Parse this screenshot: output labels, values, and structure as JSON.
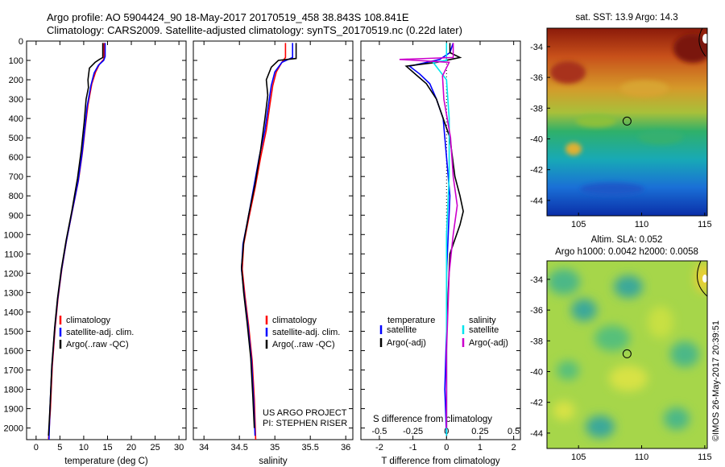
{
  "header": {
    "line1": "Argo profile: AO 5904424_90 18-May-2017 20170519_458 38.843S 108.841E",
    "line2": "Climatology: CARS2009. Satellite-adjusted climatology: synTS_20170519.nc (0.22d later)"
  },
  "depth_axis": {
    "ticks": [
      0,
      100,
      200,
      300,
      400,
      500,
      600,
      700,
      800,
      900,
      1000,
      1100,
      1200,
      1300,
      1400,
      1500,
      1600,
      1700,
      1800,
      1900,
      2000
    ],
    "ylim": [
      0,
      2060
    ],
    "inverted": true
  },
  "colors": {
    "climatology": "#ff0000",
    "satellite": "#0000ff",
    "argo": "#000000",
    "sal_satellite": "#00e5ee",
    "sal_argo": "#cc00cc"
  },
  "chart_data": [
    {
      "type": "line",
      "xlabel": "temperature (deg C)",
      "xlim": [
        -2,
        31.5
      ],
      "xticks": [
        0,
        5,
        10,
        15,
        20,
        25,
        30
      ],
      "legend": [
        "climatology",
        "satellite-adj. clim.",
        "Argo(..raw -QC)"
      ],
      "legend_position": "lower-center",
      "series": [
        {
          "name": "climatology",
          "color": "#ff0000",
          "points": [
            [
              14.3,
              10
            ],
            [
              14.3,
              80
            ],
            [
              14.2,
              95
            ],
            [
              13.3,
              120
            ],
            [
              12.5,
              160
            ],
            [
              11.7,
              220
            ],
            [
              10.9,
              330
            ],
            [
              10.3,
              450
            ],
            [
              9.7,
              580
            ],
            [
              8.9,
              720
            ],
            [
              7.6,
              880
            ],
            [
              6.4,
              1030
            ],
            [
              5.4,
              1180
            ],
            [
              4.6,
              1330
            ],
            [
              4.0,
              1480
            ],
            [
              3.4,
              1680
            ],
            [
              3.0,
              1900
            ],
            [
              2.6,
              2060
            ]
          ]
        },
        {
          "name": "satellite-adj. clim.",
          "color": "#0000ff",
          "points": [
            [
              14.5,
              10
            ],
            [
              14.5,
              80
            ],
            [
              14.2,
              100
            ],
            [
              13.1,
              125
            ],
            [
              12.2,
              165
            ],
            [
              11.5,
              230
            ],
            [
              10.7,
              340
            ],
            [
              10.2,
              460
            ],
            [
              9.6,
              590
            ],
            [
              8.8,
              730
            ],
            [
              7.5,
              890
            ],
            [
              6.3,
              1040
            ],
            [
              5.3,
              1190
            ],
            [
              4.5,
              1340
            ],
            [
              3.9,
              1490
            ],
            [
              3.3,
              1690
            ],
            [
              2.9,
              1900
            ],
            [
              2.7,
              2060
            ]
          ]
        },
        {
          "name": "Argo(..raw -QC)",
          "color": "#000000",
          "points": [
            [
              14.0,
              10
            ],
            [
              14.0,
              85
            ],
            [
              13.3,
              95
            ],
            [
              12.4,
              110
            ],
            [
              11.2,
              140
            ],
            [
              10.9,
              200
            ],
            [
              11.0,
              240
            ],
            [
              10.5,
              300
            ],
            [
              10.1,
              420
            ],
            [
              9.5,
              560
            ],
            [
              8.7,
              710
            ],
            [
              7.5,
              880
            ],
            [
              6.3,
              1030
            ],
            [
              5.3,
              1180
            ],
            [
              4.5,
              1330
            ],
            [
              3.9,
              1480
            ],
            [
              3.3,
              1680
            ],
            [
              2.9,
              1900
            ],
            [
              2.6,
              2040
            ]
          ]
        }
      ]
    },
    {
      "type": "line",
      "xlabel": "salinity",
      "xlim": [
        33.85,
        36.1
      ],
      "xticks": [
        34,
        34.5,
        35,
        35.5,
        36
      ],
      "legend": [
        "climatology",
        "satellite-adj. clim.",
        "Argo(..raw -QC)"
      ],
      "annotation": [
        "US ARGO PROJECT",
        "PI: STEPHEN RISER"
      ],
      "series": [
        {
          "name": "climatology",
          "color": "#ff0000",
          "points": [
            [
              35.15,
              10
            ],
            [
              35.15,
              85
            ],
            [
              35.1,
              110
            ],
            [
              35.02,
              160
            ],
            [
              34.97,
              230
            ],
            [
              34.93,
              330
            ],
            [
              34.88,
              460
            ],
            [
              34.8,
              600
            ],
            [
              34.72,
              760
            ],
            [
              34.63,
              920
            ],
            [
              34.56,
              1050
            ],
            [
              34.54,
              1180
            ],
            [
              34.58,
              1320
            ],
            [
              34.63,
              1470
            ],
            [
              34.68,
              1650
            ],
            [
              34.71,
              1850
            ],
            [
              34.73,
              2060
            ]
          ]
        },
        {
          "name": "satellite-adj. clim.",
          "color": "#0000ff",
          "points": [
            [
              35.25,
              10
            ],
            [
              35.25,
              85
            ],
            [
              35.1,
              110
            ],
            [
              35.0,
              160
            ],
            [
              34.95,
              230
            ],
            [
              34.91,
              330
            ],
            [
              34.86,
              460
            ],
            [
              34.78,
              600
            ],
            [
              34.7,
              760
            ],
            [
              34.62,
              920
            ],
            [
              34.55,
              1050
            ],
            [
              34.53,
              1180
            ],
            [
              34.57,
              1320
            ],
            [
              34.62,
              1470
            ],
            [
              34.67,
              1650
            ],
            [
              34.7,
              1850
            ],
            [
              34.72,
              2040
            ]
          ]
        },
        {
          "name": "Argo(..raw -QC)",
          "color": "#000000",
          "points": [
            [
              35.3,
              10
            ],
            [
              35.3,
              90
            ],
            [
              35.05,
              100
            ],
            [
              34.95,
              135
            ],
            [
              34.88,
              200
            ],
            [
              34.9,
              280
            ],
            [
              34.86,
              400
            ],
            [
              34.8,
              560
            ],
            [
              34.72,
              740
            ],
            [
              34.63,
              900
            ],
            [
              34.56,
              1040
            ],
            [
              34.53,
              1170
            ],
            [
              34.56,
              1300
            ],
            [
              34.61,
              1460
            ],
            [
              34.66,
              1640
            ],
            [
              34.69,
              1840
            ],
            [
              34.71,
              2000
            ]
          ]
        }
      ]
    },
    {
      "type": "line",
      "xlabel": "T difference from climatology",
      "xlim": [
        -2.55,
        2.2
      ],
      "xticks": [
        -2,
        -1,
        0,
        1,
        2
      ],
      "top_label": "S difference from climatology",
      "top_ticks": [
        -0.5,
        -0.25,
        0,
        0.25,
        0.5
      ],
      "top_xlim": [
        -0.6375,
        0.55
      ],
      "legend_left_title": "temperature",
      "legend_left": [
        "satellite",
        "Argo(-adj)"
      ],
      "legend_right_title": "salinity",
      "legend_right": [
        "satellite",
        "Argo(-adj)"
      ],
      "series": [
        {
          "name": "temperature satellite",
          "color": "#0000ff",
          "axis": "T",
          "points": [
            [
              0.2,
              10
            ],
            [
              0.1,
              60
            ],
            [
              -0.2,
              95
            ],
            [
              -1.1,
              130
            ],
            [
              -0.8,
              170
            ],
            [
              -0.5,
              220
            ],
            [
              -0.3,
              300
            ],
            [
              -0.1,
              400
            ],
            [
              0.0,
              600
            ],
            [
              0.1,
              800
            ],
            [
              0.05,
              1000
            ],
            [
              0.0,
              1200
            ],
            [
              0.0,
              1500
            ],
            [
              -0.05,
              1800
            ],
            [
              0.0,
              2040
            ]
          ]
        },
        {
          "name": "temperature Argo(-adj)",
          "color": "#000000",
          "axis": "T",
          "points": [
            [
              0.1,
              10
            ],
            [
              0.1,
              60
            ],
            [
              0.4,
              85
            ],
            [
              -0.3,
              110
            ],
            [
              -1.2,
              130
            ],
            [
              -0.9,
              175
            ],
            [
              -0.6,
              220
            ],
            [
              -0.3,
              300
            ],
            [
              0.1,
              500
            ],
            [
              0.25,
              700
            ],
            [
              0.4,
              800
            ],
            [
              0.5,
              880
            ],
            [
              0.4,
              950
            ],
            [
              0.2,
              1050
            ],
            [
              0.1,
              1100
            ],
            [
              0.05,
              1300
            ],
            [
              0.0,
              1500
            ],
            [
              0.0,
              1800
            ],
            [
              0.0,
              2040
            ]
          ]
        },
        {
          "name": "salinity satellite",
          "color": "#00e5ee",
          "axis": "S",
          "points": [
            [
              0.0,
              10
            ],
            [
              0.0,
              100
            ],
            [
              -0.1,
              110
            ],
            [
              0.0,
              200
            ],
            [
              0.02,
              400
            ],
            [
              0.02,
              700
            ],
            [
              0.0,
              1000
            ],
            [
              0.0,
              1400
            ],
            [
              0.0,
              2040
            ]
          ]
        },
        {
          "name": "salinity Argo(-adj)",
          "color": "#cc00cc",
          "axis": "S",
          "points": [
            [
              0.05,
              10
            ],
            [
              0.05,
              85
            ],
            [
              -0.35,
              95
            ],
            [
              0.02,
              110
            ],
            [
              -0.03,
              180
            ],
            [
              -0.02,
              300
            ],
            [
              0.03,
              500
            ],
            [
              0.05,
              700
            ],
            [
              0.08,
              850
            ],
            [
              0.05,
              1000
            ],
            [
              0.02,
              1200
            ],
            [
              0.0,
              1600
            ],
            [
              0.0,
              2000
            ]
          ]
        }
      ]
    },
    {
      "type": "heatmap",
      "title": "sat. SST: 13.9 Argo: 14.3",
      "xlim": [
        102.5,
        115.2
      ],
      "ylim": [
        -45,
        -32.8
      ],
      "xticks": [
        105,
        110,
        115
      ],
      "yticks": [
        -34,
        -36,
        -38,
        -40,
        -42,
        -44
      ],
      "marker": [
        108.841,
        -38.843
      ]
    },
    {
      "type": "heatmap",
      "title": "Altim. SLA: 0.052",
      "subtitle": "Argo h1000: 0.0042 h2000: 0.0058",
      "xlim": [
        102.5,
        115.2
      ],
      "ylim": [
        -45,
        -32.8
      ],
      "xticks": [
        105,
        110,
        115
      ],
      "yticks": [
        -34,
        -36,
        -38,
        -40,
        -42,
        -44
      ],
      "marker": [
        108.841,
        -38.843
      ]
    }
  ],
  "credit": "©IMOS 26-May-2017 20:39:51"
}
